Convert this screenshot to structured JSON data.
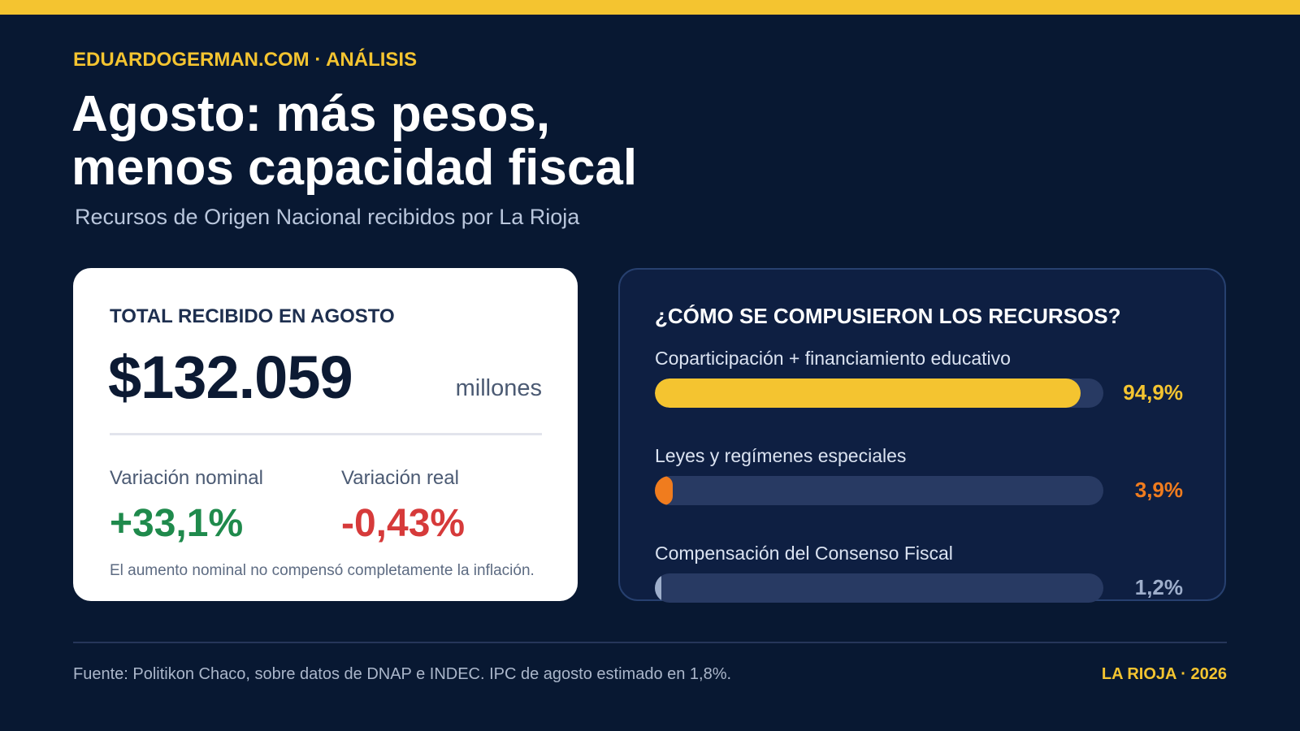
{
  "header": {
    "kicker": "EDUARDOGERMAN.COM · ANÁLISIS",
    "title_line1": "Agosto: más pesos,",
    "title_line2": "menos capacidad fiscal",
    "subtitle": "Recursos de Origen Nacional recibidos por La Rioja"
  },
  "total_card": {
    "label": "TOTAL RECIBIDO EN AGOSTO",
    "value": "$132.059",
    "unit": "millones",
    "nominal": {
      "label": "Variación nominal",
      "value": "+33,1%"
    },
    "real": {
      "label": "Variación real",
      "value": "-0,43%"
    },
    "note": "El aumento nominal no compensó completamente la inflación."
  },
  "composition": {
    "title": "¿CÓMO SE COMPUSIERON LOS RECURSOS?",
    "items": [
      {
        "label": "Coparticipación + financiamiento educativo",
        "value_text": "94,9%",
        "color": "#f4c430"
      },
      {
        "label": "Leyes y regímenes especiales",
        "value_text": "3,9%",
        "color": "#f07c1e"
      },
      {
        "label": "Compensación del Consenso Fiscal",
        "value_text": "1,2%",
        "color": "#9eaecb"
      }
    ]
  },
  "chart_data": {
    "type": "bar",
    "title": "¿CÓMO SE COMPUSIERON LOS RECURSOS?",
    "categories": [
      "Coparticipación + financiamiento educativo",
      "Leyes y regímenes especiales",
      "Compensación del Consenso Fiscal"
    ],
    "values": [
      94.9,
      3.9,
      1.2
    ],
    "ylim": [
      0,
      100
    ],
    "grid": false
  },
  "footer": {
    "source": "Fuente: Politikon Chaco, sobre datos de DNAP e INDEC. IPC de agosto estimado en 1,8%.",
    "tag": "LA RIOJA · 2026"
  }
}
